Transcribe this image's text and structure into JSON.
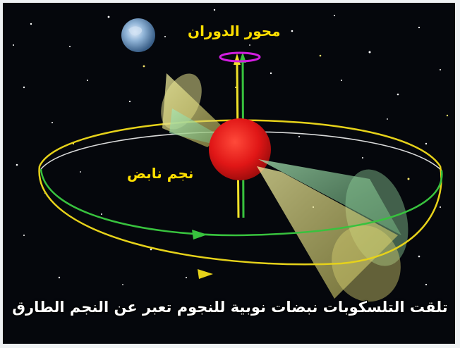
{
  "labels": {
    "rotation_axis": "محور الدوران",
    "pulsar": "نجم نابض",
    "caption": "تلقت التلسكوبات نبضات نوبية للنجوم تعبر عن النجم الطارق"
  },
  "colors": {
    "background": "#05070c",
    "label_yellow": "#ffdf00",
    "star_red": "#e8201e",
    "orbit_yellow": "#e6d21a",
    "orbit_green": "#2fbf3a",
    "axis_magenta": "#d21ee0",
    "beam_yellow": "#e6e07a",
    "beam_green": "#8fd39a"
  },
  "icons": [
    "planet-icon",
    "pulsar-star",
    "rotation-ring",
    "orbit-arrow"
  ]
}
